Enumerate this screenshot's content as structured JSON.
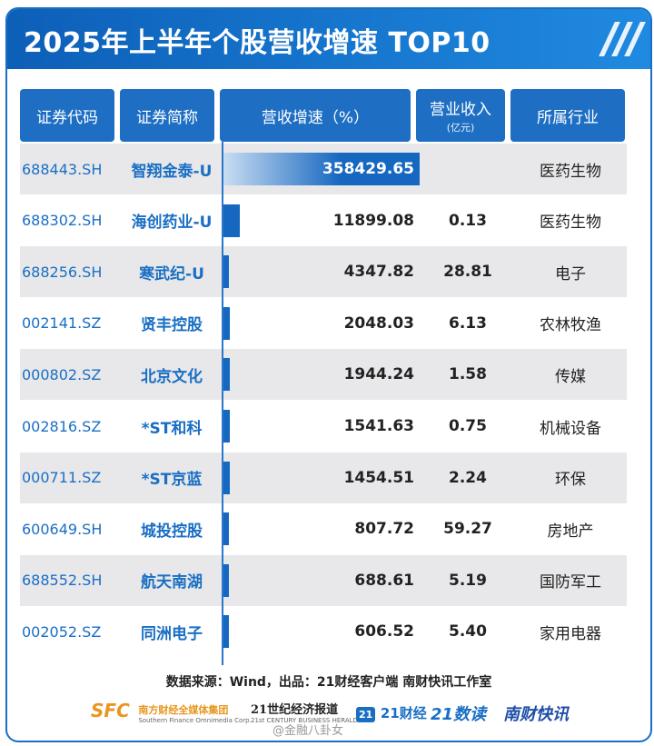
{
  "title": "2025年上半年个股营收增速 TOP10",
  "columns": {
    "code": "证券代码",
    "name": "证券简称",
    "growth": "营收增速（%）",
    "revenue": "营业收入",
    "revenue_unit": "(亿元)",
    "industry": "所属行业"
  },
  "rows": [
    {
      "code": "688443.SH",
      "name": "智翔金泰-U",
      "growth": "358429.65",
      "revenue": "",
      "industry": "医药生物"
    },
    {
      "code": "688302.SH",
      "name": "海创药业-U",
      "growth": "11899.08",
      "revenue": "0.13",
      "industry": "医药生物"
    },
    {
      "code": "688256.SH",
      "name": "寒武纪-U",
      "growth": "4347.82",
      "revenue": "28.81",
      "industry": "电子"
    },
    {
      "code": "002141.SZ",
      "name": "贤丰控股",
      "growth": "2048.03",
      "revenue": "6.13",
      "industry": "农林牧渔"
    },
    {
      "code": "000802.SZ",
      "name": "北京文化",
      "growth": "1944.24",
      "revenue": "1.58",
      "industry": "传媒"
    },
    {
      "code": "002816.SZ",
      "name": "*ST和科",
      "growth": "1541.63",
      "revenue": "0.75",
      "industry": "机械设备"
    },
    {
      "code": "000711.SZ",
      "name": "*ST京蓝",
      "growth": "1454.51",
      "revenue": "2.24",
      "industry": "环保"
    },
    {
      "code": "600649.SH",
      "name": "城投控股",
      "growth": "807.72",
      "revenue": "59.27",
      "industry": "房地产"
    },
    {
      "code": "688552.SH",
      "name": "航天南湖",
      "growth": "688.61",
      "revenue": "5.19",
      "industry": "国防军工"
    },
    {
      "code": "002052.SZ",
      "name": "同洲电子",
      "growth": "606.52",
      "revenue": "5.40",
      "industry": "家用电器"
    }
  ],
  "source": "数据来源：Wind，出品：21财经客户端 南财快讯工作室",
  "logos": {
    "sfc": "SFC",
    "sfc_name": "南方财经全媒体集团",
    "sfc_en": "Southern Finance Omnimedia Corp.",
    "herald": "21世纪经济报道",
    "herald_en": "21st CENTURY BUSINESS HERALD",
    "app": "21财经",
    "app_badge": "21",
    "shudu": "21数读",
    "kuaixun": "南财快讯"
  },
  "watermark": "@金融八卦女",
  "colors": {
    "accent": "#1a6fc4",
    "header_bg": "#1e6fc3",
    "row_alt": "#e8e8ea",
    "bar": "#1667c0"
  },
  "chart_data": {
    "type": "table",
    "title": "2025年上半年个股营收增速 TOP10",
    "categories": [
      "智翔金泰-U",
      "海创药业-U",
      "寒武纪-U",
      "贤丰控股",
      "北京文化",
      "*ST和科",
      "*ST京蓝",
      "城投控股",
      "航天南湖",
      "同洲电子"
    ],
    "series": [
      {
        "name": "营收增速（%）",
        "values": [
          358429.65,
          11899.08,
          4347.82,
          2048.03,
          1944.24,
          1541.63,
          1454.51,
          807.72,
          688.61,
          606.52
        ]
      },
      {
        "name": "营业收入",
        "values": [
          null,
          0.13,
          28.81,
          6.13,
          1.58,
          0.75,
          2.24,
          59.27,
          5.19,
          5.4
        ]
      }
    ]
  }
}
